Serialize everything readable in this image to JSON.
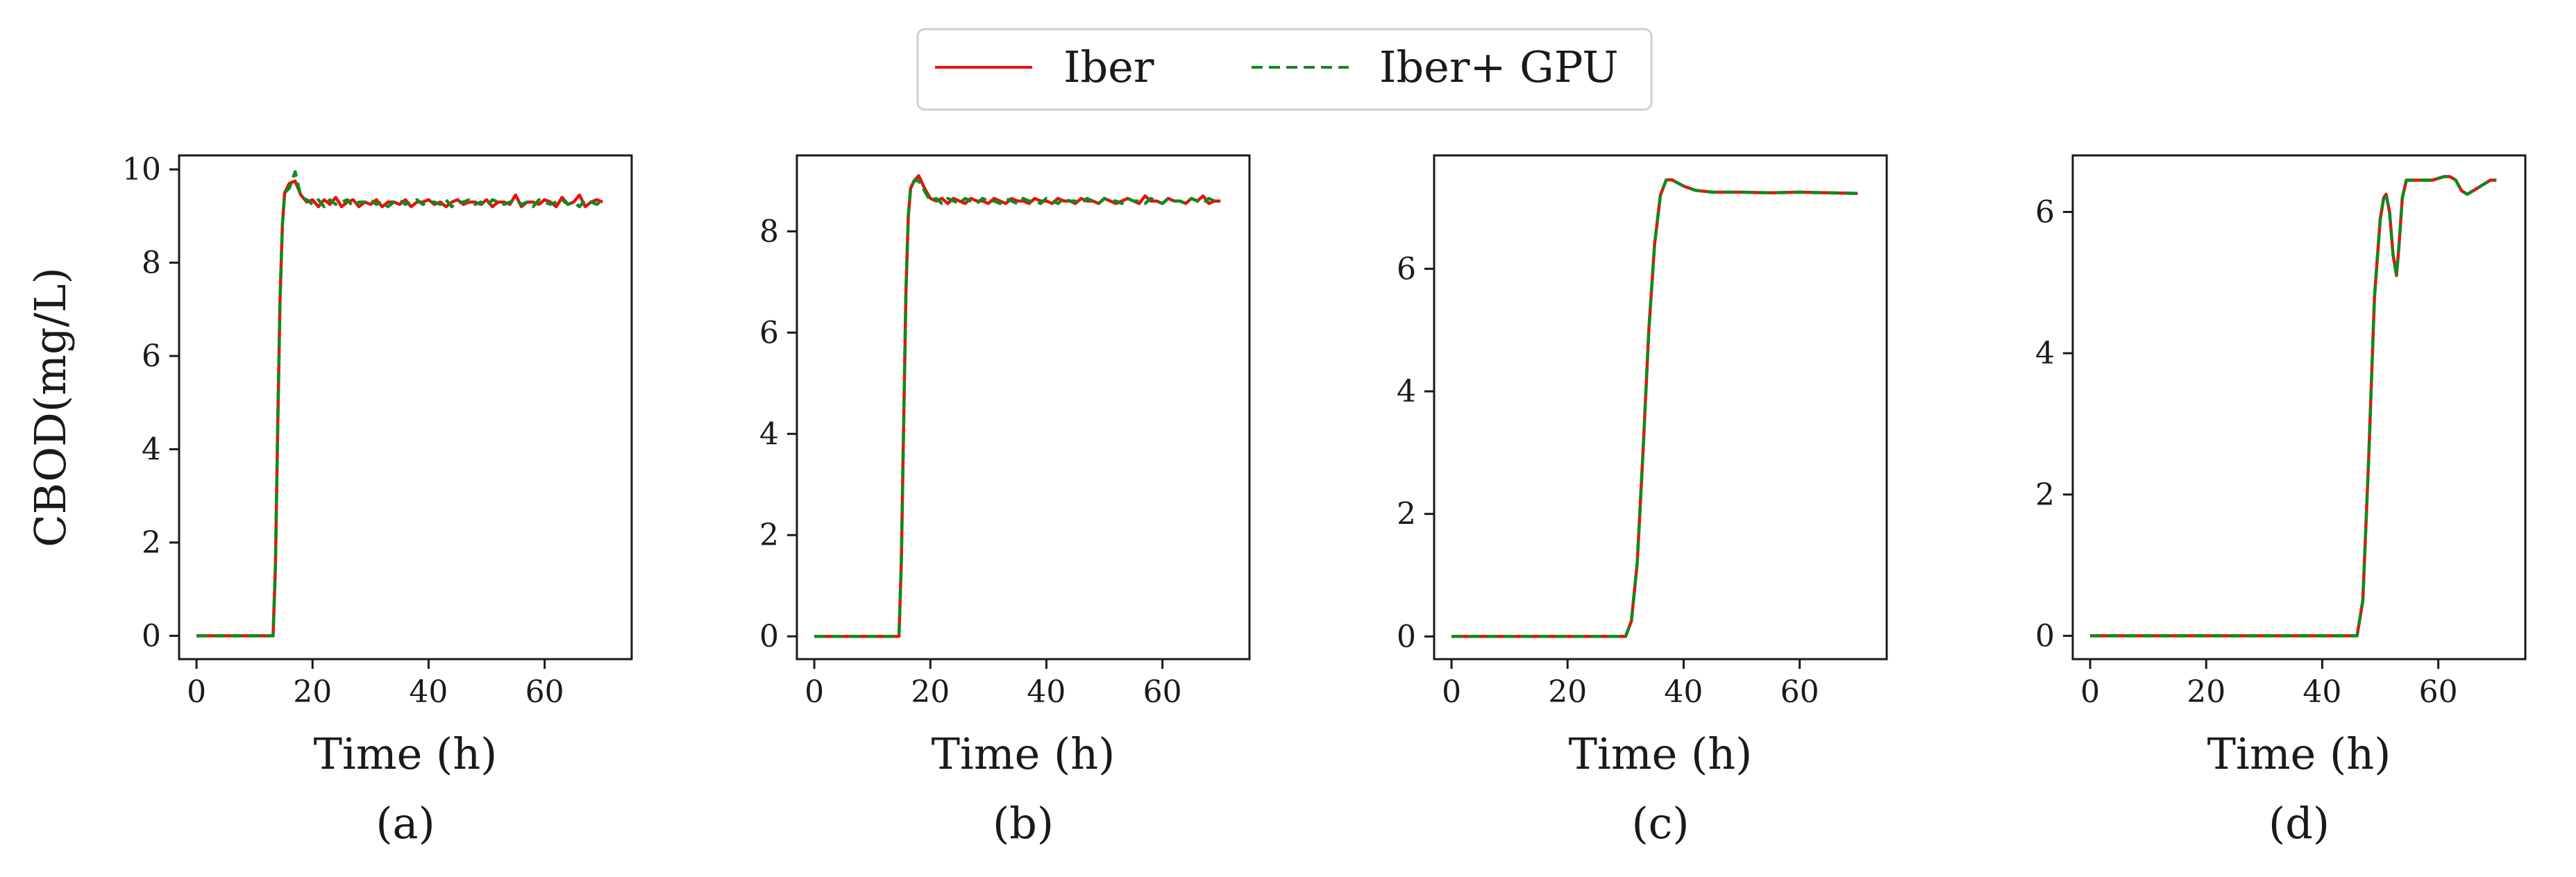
{
  "legend": {
    "series": [
      {
        "label": "Iber",
        "color": "#e8120c",
        "dash": "solid"
      },
      {
        "label": "Iber+ GPU",
        "color": "#0f8a1f",
        "dash": "dashed"
      }
    ]
  },
  "chart_data": [
    {
      "type": "line",
      "panel_label": "(a)",
      "xlabel": "Time (h)",
      "ylabel": "CBOD(mg/L)",
      "xlim": [
        -3,
        75
      ],
      "ylim": [
        -0.5,
        10.3
      ],
      "xticks": [
        0,
        20,
        40,
        60
      ],
      "yticks": [
        0,
        2,
        4,
        6,
        8,
        10
      ],
      "series": [
        {
          "name": "Iber",
          "x": [
            0,
            13.2,
            13.6,
            14.0,
            14.4,
            14.8,
            15.2,
            16,
            17,
            18,
            19,
            20,
            21,
            22,
            23,
            24,
            25,
            26,
            27,
            28,
            29,
            30,
            31,
            32,
            33,
            34,
            35,
            36,
            37,
            38,
            39,
            40,
            41,
            42,
            43,
            44,
            45,
            46,
            47,
            48,
            49,
            50,
            51,
            52,
            53,
            54,
            55,
            56,
            57,
            58,
            59,
            60,
            61,
            62,
            63,
            64,
            65,
            66,
            67,
            68,
            69,
            70
          ],
          "y": [
            0,
            0,
            1.5,
            4.5,
            7.2,
            8.8,
            9.5,
            9.7,
            9.75,
            9.45,
            9.3,
            9.35,
            9.2,
            9.35,
            9.25,
            9.4,
            9.2,
            9.3,
            9.35,
            9.2,
            9.3,
            9.25,
            9.35,
            9.2,
            9.3,
            9.3,
            9.25,
            9.35,
            9.2,
            9.3,
            9.3,
            9.35,
            9.25,
            9.3,
            9.2,
            9.3,
            9.35,
            9.25,
            9.3,
            9.3,
            9.25,
            9.35,
            9.2,
            9.3,
            9.3,
            9.25,
            9.45,
            9.2,
            9.3,
            9.3,
            9.25,
            9.35,
            9.3,
            9.2,
            9.4,
            9.25,
            9.3,
            9.45,
            9.2,
            9.3,
            9.35,
            9.3
          ]
        },
        {
          "name": "Iber+ GPU",
          "x": [
            0,
            13.2,
            13.6,
            14.0,
            14.4,
            14.8,
            15.2,
            16,
            17,
            18,
            19,
            20,
            21,
            22,
            23,
            24,
            25,
            26,
            27,
            28,
            29,
            30,
            31,
            32,
            33,
            34,
            35,
            36,
            37,
            38,
            39,
            40,
            41,
            42,
            43,
            44,
            45,
            46,
            47,
            48,
            49,
            50,
            51,
            52,
            53,
            54,
            55,
            56,
            57,
            58,
            59,
            60,
            61,
            62,
            63,
            64,
            65,
            66,
            67,
            68,
            69,
            70
          ],
          "y": [
            0,
            0,
            1.5,
            4.5,
            7.2,
            8.8,
            9.5,
            9.6,
            9.95,
            9.4,
            9.35,
            9.25,
            9.35,
            9.2,
            9.35,
            9.25,
            9.3,
            9.35,
            9.2,
            9.3,
            9.3,
            9.35,
            9.25,
            9.3,
            9.2,
            9.3,
            9.35,
            9.25,
            9.3,
            9.35,
            9.25,
            9.3,
            9.3,
            9.25,
            9.35,
            9.2,
            9.3,
            9.3,
            9.35,
            9.25,
            9.3,
            9.2,
            9.35,
            9.3,
            9.25,
            9.3,
            9.35,
            9.25,
            9.3,
            9.2,
            9.35,
            9.3,
            9.25,
            9.3,
            9.35,
            9.25,
            9.3,
            9.2,
            9.35,
            9.3,
            9.25,
            9.35
          ]
        }
      ]
    },
    {
      "type": "line",
      "panel_label": "(b)",
      "xlabel": "Time (h)",
      "ylabel": "",
      "xlim": [
        -3,
        75
      ],
      "ylim": [
        -0.45,
        9.5
      ],
      "xticks": [
        0,
        20,
        40,
        60
      ],
      "yticks": [
        0,
        2,
        4,
        6,
        8
      ],
      "series": [
        {
          "name": "Iber",
          "x": [
            0,
            14.6,
            15.0,
            15.4,
            15.8,
            16.2,
            16.6,
            17.2,
            18,
            19,
            20,
            21,
            22,
            23,
            24,
            25,
            26,
            27,
            28,
            29,
            30,
            31,
            32,
            33,
            34,
            35,
            36,
            37,
            38,
            39,
            40,
            41,
            42,
            43,
            44,
            45,
            46,
            47,
            48,
            49,
            50,
            51,
            52,
            53,
            54,
            55,
            56,
            57,
            58,
            59,
            60,
            61,
            62,
            63,
            64,
            65,
            66,
            67,
            68,
            69,
            70
          ],
          "y": [
            0,
            0,
            1.5,
            4.2,
            6.8,
            8.3,
            8.85,
            9.0,
            9.1,
            8.85,
            8.65,
            8.6,
            8.65,
            8.55,
            8.65,
            8.6,
            8.55,
            8.65,
            8.6,
            8.6,
            8.55,
            8.65,
            8.6,
            8.55,
            8.65,
            8.6,
            8.6,
            8.55,
            8.65,
            8.6,
            8.6,
            8.55,
            8.65,
            8.6,
            8.6,
            8.55,
            8.65,
            8.6,
            8.6,
            8.55,
            8.65,
            8.6,
            8.55,
            8.6,
            8.65,
            8.6,
            8.55,
            8.7,
            8.6,
            8.6,
            8.55,
            8.65,
            8.6,
            8.6,
            8.55,
            8.65,
            8.6,
            8.7,
            8.55,
            8.6,
            8.6
          ]
        },
        {
          "name": "Iber+ GPU",
          "x": [
            0,
            14.6,
            15.0,
            15.4,
            15.8,
            16.2,
            16.6,
            17.2,
            18,
            19,
            20,
            21,
            22,
            23,
            24,
            25,
            26,
            27,
            28,
            29,
            30,
            31,
            32,
            33,
            34,
            35,
            36,
            37,
            38,
            39,
            40,
            41,
            42,
            43,
            44,
            45,
            46,
            47,
            48,
            49,
            50,
            51,
            52,
            53,
            54,
            55,
            56,
            57,
            58,
            59,
            60,
            61,
            62,
            63,
            64,
            65,
            66,
            67,
            68,
            69,
            70
          ],
          "y": [
            0,
            0,
            1.5,
            4.2,
            6.8,
            8.3,
            8.85,
            9.0,
            9.0,
            8.8,
            8.6,
            8.65,
            8.55,
            8.65,
            8.6,
            8.55,
            8.65,
            8.6,
            8.55,
            8.65,
            8.6,
            8.6,
            8.55,
            8.65,
            8.6,
            8.55,
            8.65,
            8.6,
            8.6,
            8.55,
            8.65,
            8.6,
            8.55,
            8.65,
            8.6,
            8.6,
            8.55,
            8.65,
            8.6,
            8.55,
            8.65,
            8.6,
            8.6,
            8.55,
            8.65,
            8.6,
            8.6,
            8.55,
            8.65,
            8.6,
            8.55,
            8.65,
            8.6,
            8.6,
            8.55,
            8.65,
            8.6,
            8.55,
            8.65,
            8.6,
            8.6
          ]
        }
      ]
    },
    {
      "type": "line",
      "panel_label": "(c)",
      "xlabel": "Time (h)",
      "ylabel": "",
      "xlim": [
        -3,
        75
      ],
      "ylim": [
        -0.37,
        7.85
      ],
      "xticks": [
        0,
        20,
        40,
        60
      ],
      "yticks": [
        0,
        2,
        4,
        6
      ],
      "series": [
        {
          "name": "Iber",
          "x": [
            0,
            30,
            31,
            32,
            33,
            34,
            35,
            36,
            37,
            38,
            39,
            40,
            42,
            45,
            50,
            55,
            60,
            65,
            70
          ],
          "y": [
            0,
            0,
            0.25,
            1.2,
            3.0,
            5.0,
            6.4,
            7.2,
            7.45,
            7.45,
            7.4,
            7.35,
            7.28,
            7.25,
            7.25,
            7.24,
            7.25,
            7.24,
            7.23
          ]
        },
        {
          "name": "Iber+ GPU",
          "x": [
            0,
            30,
            31,
            32,
            33,
            34,
            35,
            36,
            37,
            38,
            39,
            40,
            42,
            45,
            50,
            55,
            60,
            65,
            70
          ],
          "y": [
            0,
            0,
            0.25,
            1.2,
            3.0,
            5.0,
            6.4,
            7.2,
            7.45,
            7.45,
            7.4,
            7.35,
            7.28,
            7.25,
            7.25,
            7.24,
            7.25,
            7.24,
            7.23
          ]
        }
      ]
    },
    {
      "type": "line",
      "panel_label": "(d)",
      "xlabel": "Time (h)",
      "ylabel": "",
      "xlim": [
        -3,
        75
      ],
      "ylim": [
        -0.33,
        6.8
      ],
      "xticks": [
        0,
        20,
        40,
        60
      ],
      "yticks": [
        0,
        2,
        4,
        6
      ],
      "series": [
        {
          "name": "Iber",
          "x": [
            0,
            46,
            47,
            48,
            49,
            50,
            50.6,
            51,
            51.6,
            52.2,
            52.8,
            53.2,
            53.8,
            54.5,
            55.5,
            57,
            59,
            61,
            62,
            63,
            64,
            65,
            66,
            67,
            68,
            69,
            70
          ],
          "y": [
            0,
            0,
            0.5,
            2.5,
            4.8,
            5.9,
            6.2,
            6.25,
            6.0,
            5.4,
            5.1,
            5.5,
            6.2,
            6.45,
            6.45,
            6.45,
            6.45,
            6.5,
            6.5,
            6.45,
            6.3,
            6.25,
            6.3,
            6.35,
            6.4,
            6.45,
            6.45
          ]
        },
        {
          "name": "Iber+ GPU",
          "x": [
            0,
            46,
            47,
            48,
            49,
            50,
            50.6,
            51,
            51.6,
            52.2,
            52.8,
            53.2,
            53.8,
            54.5,
            55.5,
            57,
            59,
            61,
            62,
            63,
            64,
            65,
            66,
            67,
            68,
            69,
            70
          ],
          "y": [
            0,
            0,
            0.5,
            2.5,
            4.8,
            5.9,
            6.2,
            6.25,
            6.0,
            5.4,
            5.1,
            5.5,
            6.2,
            6.45,
            6.45,
            6.45,
            6.45,
            6.5,
            6.5,
            6.45,
            6.3,
            6.25,
            6.3,
            6.35,
            6.4,
            6.45,
            6.45
          ]
        }
      ]
    }
  ]
}
